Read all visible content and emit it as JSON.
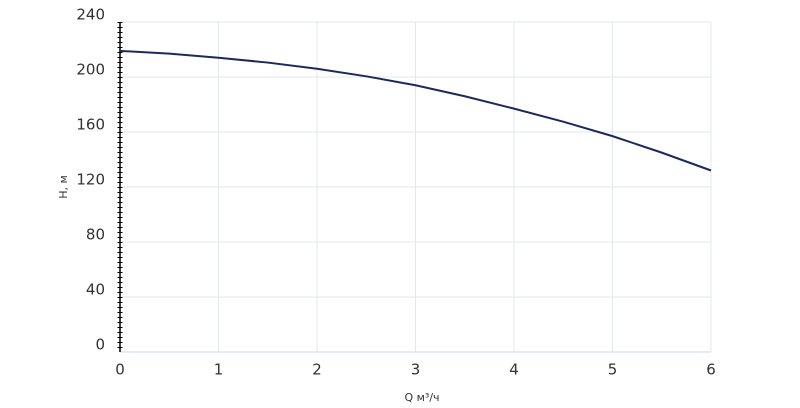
{
  "chart_data": {
    "type": "line",
    "x": [
      0,
      0.5,
      1,
      1.5,
      2,
      2.5,
      3,
      3.5,
      4,
      4.5,
      5,
      5.5,
      6
    ],
    "values": [
      219,
      217,
      214,
      210.5,
      206,
      200.5,
      194,
      186,
      177,
      167.5,
      157,
      145,
      132
    ],
    "color": "#1b2a5c",
    "xlabel": "Q м³/ч",
    "ylabel": "H, м",
    "xlim": [
      0,
      6
    ],
    "xticks": [
      0,
      1,
      2,
      3,
      4,
      5,
      6
    ],
    "ylim": [
      0,
      240
    ],
    "yticks": [
      0,
      40,
      80,
      120,
      160,
      200,
      240
    ],
    "grid": true
  }
}
